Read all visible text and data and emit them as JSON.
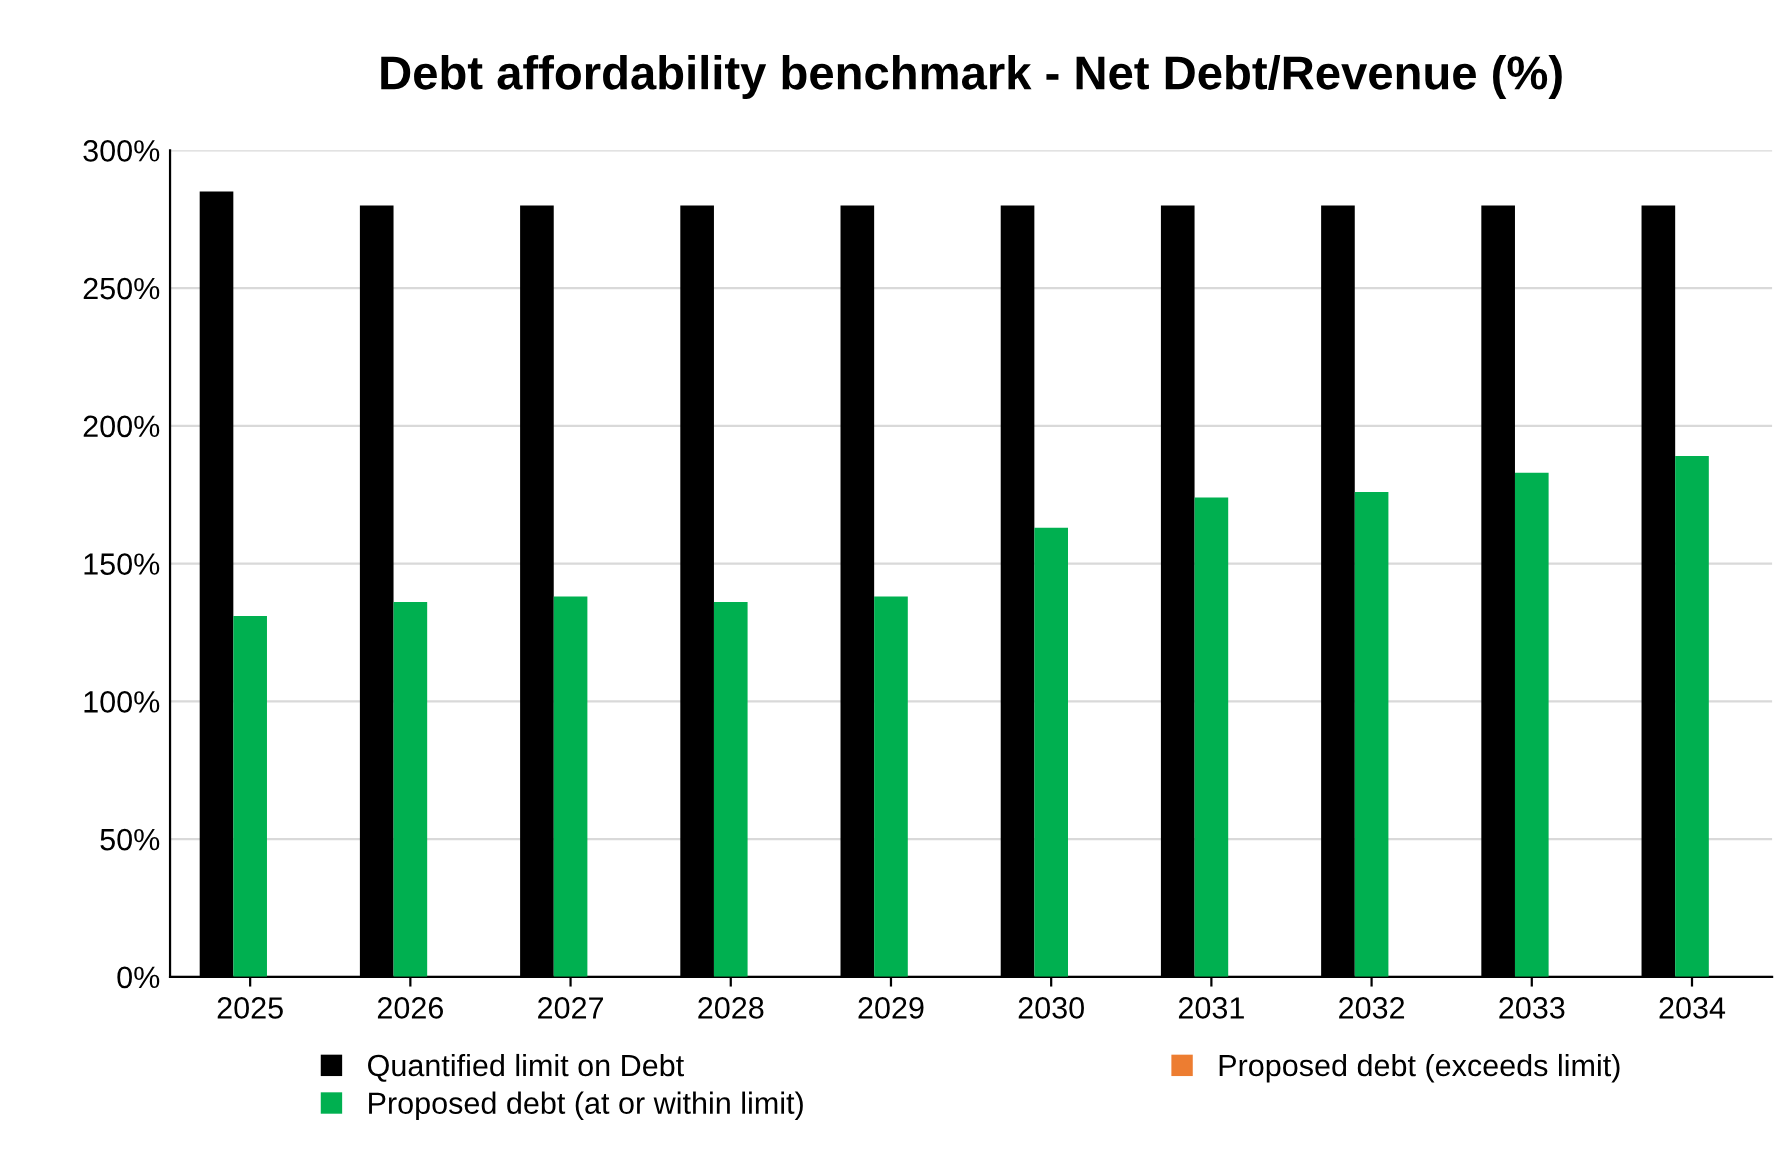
{
  "chart_data": {
    "type": "bar",
    "title": "Debt affordability benchmark - Net Debt/Revenue (%)",
    "categories": [
      "2025",
      "2026",
      "2027",
      "2028",
      "2029",
      "2030",
      "2031",
      "2032",
      "2033",
      "2034"
    ],
    "series": [
      {
        "name": "Quantified limit on Debt",
        "color": "#000000",
        "values": [
          285,
          280,
          280,
          280,
          280,
          280,
          280,
          280,
          280,
          280
        ]
      },
      {
        "name": "Proposed debt (at or within limit)",
        "color": "#00b050",
        "values": [
          131,
          136,
          138,
          136,
          138,
          163,
          174,
          176,
          183,
          189
        ]
      },
      {
        "name": "Proposed debt (exceeds limit)",
        "color": "#ed7d31",
        "values": [
          null,
          null,
          null,
          null,
          null,
          null,
          null,
          null,
          null,
          null
        ]
      }
    ],
    "ylim": [
      0,
      300
    ],
    "yticks": [
      {
        "value": 0,
        "label": "0%"
      },
      {
        "value": 50,
        "label": "50%"
      },
      {
        "value": 100,
        "label": "100%"
      },
      {
        "value": 150,
        "label": "150%"
      },
      {
        "value": 200,
        "label": "200%"
      },
      {
        "value": 250,
        "label": "250%"
      },
      {
        "value": 300,
        "label": "300%"
      }
    ],
    "grid": "y",
    "legend": "bottom"
  }
}
